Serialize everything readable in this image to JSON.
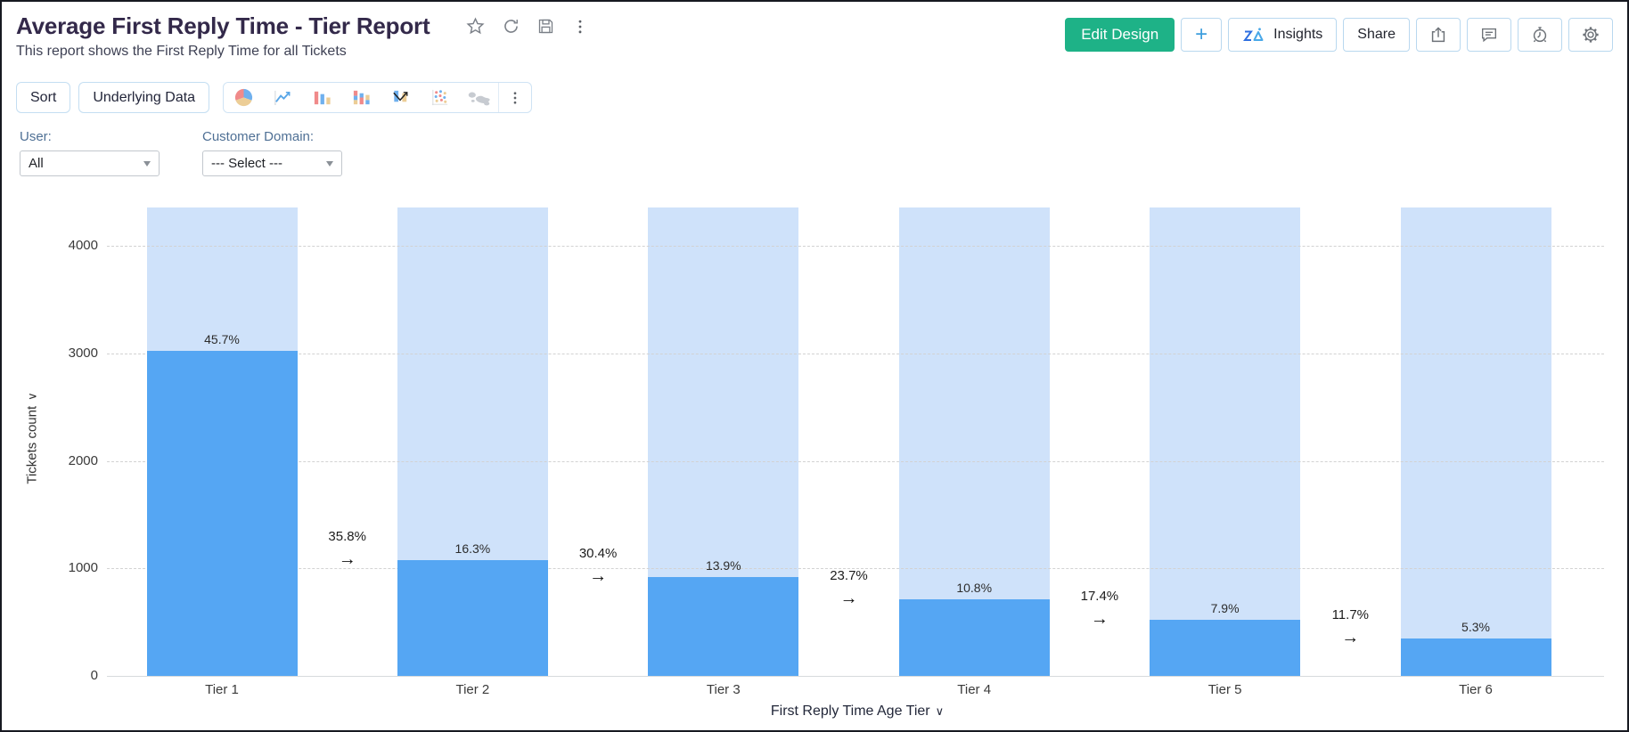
{
  "header": {
    "title": "Average First Reply Time - Tier Report",
    "subtitle": "This report shows the First Reply Time for all Tickets",
    "title_icons": [
      "favorite-icon",
      "refresh-icon",
      "save-icon",
      "more-options-icon"
    ],
    "actions": {
      "edit_design": "Edit Design",
      "add": "+",
      "insights": "Insights",
      "share": "Share",
      "icon_buttons": [
        "export-icon",
        "comment-icon",
        "alarm-icon",
        "settings-icon"
      ]
    }
  },
  "toolbar": {
    "sort": "Sort",
    "underlying_data": "Underlying Data",
    "chart_type_icons": [
      "pie-chart-icon",
      "line-chart-icon",
      "bar-chart-icon",
      "stacked-bar-chart-icon",
      "candlestick-chart-icon",
      "scatter-chart-icon",
      "map-chart-icon",
      "more-chart-types-icon"
    ]
  },
  "filters": [
    {
      "label": "User:",
      "value": "All"
    },
    {
      "label": "Customer Domain:",
      "value": "--- Select ---"
    }
  ],
  "chart_data": {
    "type": "bar",
    "subtype": "funnel-comparison",
    "categories": [
      "Tier 1",
      "Tier 2",
      "Tier 3",
      "Tier 4",
      "Tier 5",
      "Tier 6"
    ],
    "values": [
      3025,
      1079,
      920,
      715,
      523,
      351
    ],
    "percent_labels": [
      "45.7%",
      "16.3%",
      "13.9%",
      "10.8%",
      "7.9%",
      "5.3%"
    ],
    "transition_labels": [
      "35.8%",
      "30.4%",
      "23.7%",
      "17.4%",
      "11.7%"
    ],
    "background_bar_value": 4360,
    "xlabel": "First Reply Time Age Tier",
    "ylabel": "Tickets count",
    "yticks": [
      0,
      1000,
      2000,
      3000,
      4000
    ],
    "ylim": [
      0,
      4360
    ],
    "grid": true,
    "legend": "none",
    "bar_color": "#55a6f3",
    "bar_bg_color": "#cfe2fa"
  },
  "colors": {
    "accent_green": "#1eb287",
    "accent_blue": "#3e9edd",
    "button_border": "#b9d8ef",
    "title_text": "#33294a"
  }
}
